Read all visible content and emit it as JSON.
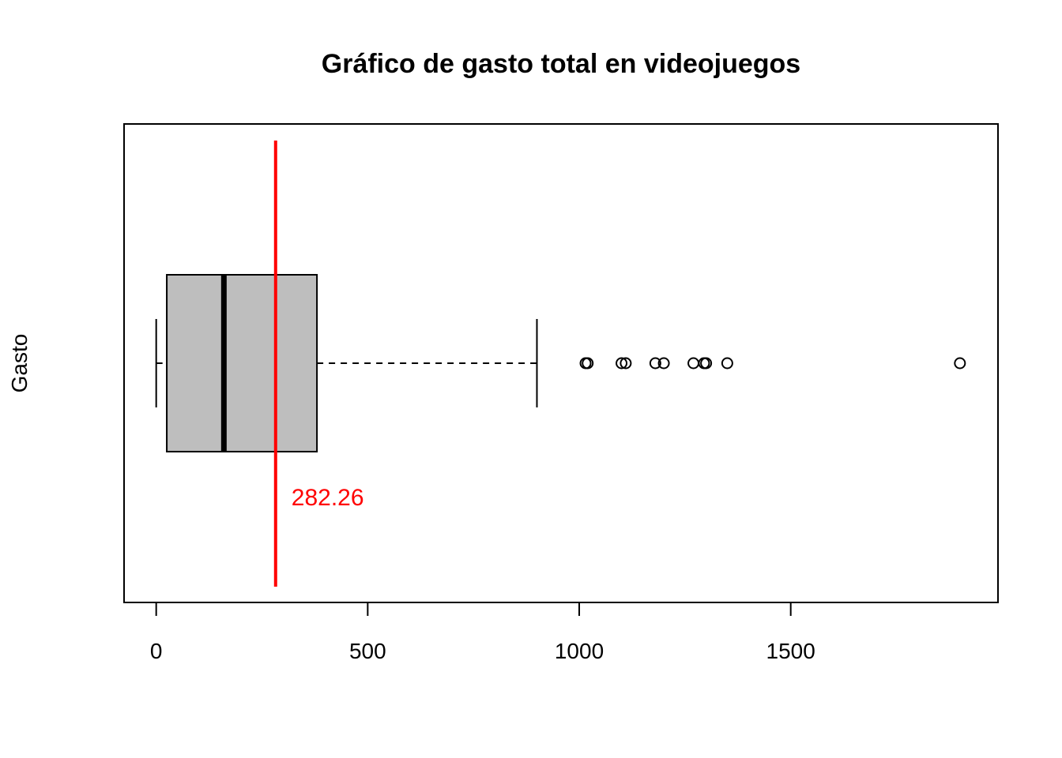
{
  "chart_data": {
    "type": "boxplot",
    "orientation": "horizontal",
    "title": "Gráfico de gasto total en videojuegos",
    "xlabel": "",
    "ylabel": "Gasto",
    "xlim": [
      -76,
      1990
    ],
    "x_ticks": [
      0,
      500,
      1000,
      1500
    ],
    "x_tick_labels": [
      "0",
      "500",
      "1000",
      "1500"
    ],
    "grid": false,
    "box": {
      "whisker_low": 0,
      "q1": 25,
      "median": 160,
      "q3": 380,
      "whisker_high": 900,
      "fill_color": "#bebebe"
    },
    "outliers": [
      1015,
      1020,
      1100,
      1110,
      1180,
      1200,
      1270,
      1295,
      1300,
      1350,
      1900
    ],
    "mean_line": {
      "value": 282.26,
      "label": "282.26",
      "color": "#ff0000"
    }
  }
}
